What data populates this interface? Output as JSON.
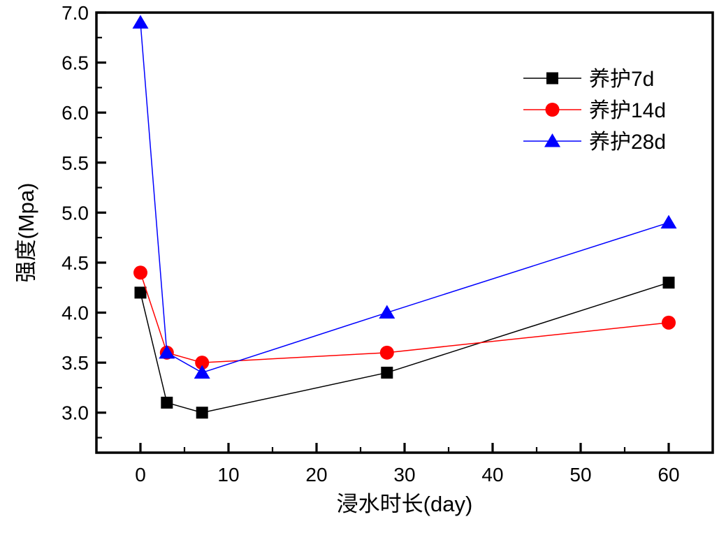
{
  "figure": {
    "background": "#ffffff",
    "frame_color": "#000000"
  },
  "chart_data": {
    "type": "line",
    "title": "",
    "xlabel": "浸水时长(day)",
    "ylabel": "强度(Mpa)",
    "x": [
      0,
      3,
      7,
      28,
      60
    ],
    "series": [
      {
        "name": "养护7d",
        "color": "#000000",
        "marker": "square",
        "values": [
          4.2,
          3.1,
          3.0,
          3.4,
          4.3
        ]
      },
      {
        "name": "养护14d",
        "color": "#ff0000",
        "marker": "circle",
        "values": [
          4.4,
          3.6,
          3.5,
          3.6,
          3.9
        ]
      },
      {
        "name": "养护28d",
        "color": "#0000ff",
        "marker": "triangle",
        "values": [
          6.9,
          3.6,
          3.4,
          4.0,
          4.9
        ]
      }
    ],
    "xlim": [
      -5,
      65
    ],
    "ylim": [
      2.6,
      7.0
    ],
    "xticks": {
      "major": [
        0,
        10,
        20,
        30,
        40,
        50,
        60
      ],
      "minor_step": 5
    },
    "yticks": {
      "major": [
        3.0,
        3.5,
        4.0,
        4.5,
        5.0,
        5.5,
        6.0,
        6.5,
        7.0
      ],
      "minor_step": 0.25,
      "format_decimals": 1
    },
    "grid": false,
    "legend": {
      "position": "upper-right",
      "border": false
    }
  }
}
